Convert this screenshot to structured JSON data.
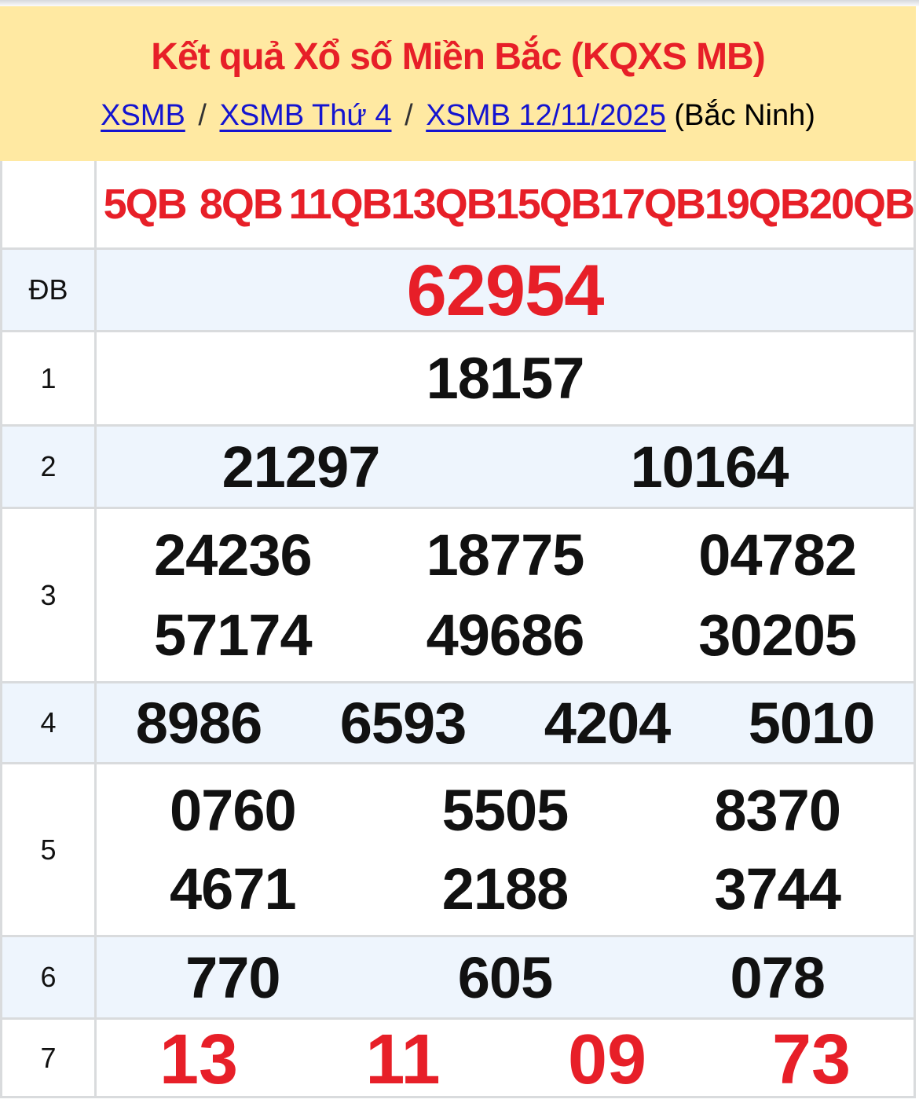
{
  "header": {
    "title": "Kết quả Xổ số Miền Bắc (KQXS MB)",
    "breadcrumb": [
      {
        "label": "XSMB"
      },
      {
        "label": "XSMB Thứ 4"
      },
      {
        "label": "XSMB 12/11/2025"
      }
    ],
    "separator": "/",
    "location_suffix": "(Bắc Ninh)"
  },
  "table": {
    "header_labels": [
      "5QB",
      "8QB",
      "11QB",
      "13QB",
      "15QB",
      "17QB",
      "19QB",
      "20QB"
    ],
    "rows": [
      {
        "label": "ĐB",
        "lines": [
          [
            "62954"
          ]
        ]
      },
      {
        "label": "1",
        "lines": [
          [
            "18157"
          ]
        ]
      },
      {
        "label": "2",
        "lines": [
          [
            "21297",
            "10164"
          ]
        ]
      },
      {
        "label": "3",
        "lines": [
          [
            "24236",
            "18775",
            "04782"
          ],
          [
            "57174",
            "49686",
            "30205"
          ]
        ]
      },
      {
        "label": "4",
        "lines": [
          [
            "8986",
            "6593",
            "4204",
            "5010"
          ]
        ]
      },
      {
        "label": "5",
        "lines": [
          [
            "0760",
            "5505",
            "8370"
          ],
          [
            "4671",
            "2188",
            "3744"
          ]
        ]
      },
      {
        "label": "6",
        "lines": [
          [
            "770",
            "605",
            "078"
          ]
        ]
      },
      {
        "label": "7",
        "lines": [
          [
            "13",
            "11",
            "09",
            "73"
          ]
        ]
      }
    ]
  },
  "colors": {
    "header_background": "#ffe9a2",
    "accent_red": "#e71f28",
    "shaded_row_blue": "#eef5fd",
    "link_blue": "#1414d0",
    "border_gray": "#d9dbdd"
  }
}
